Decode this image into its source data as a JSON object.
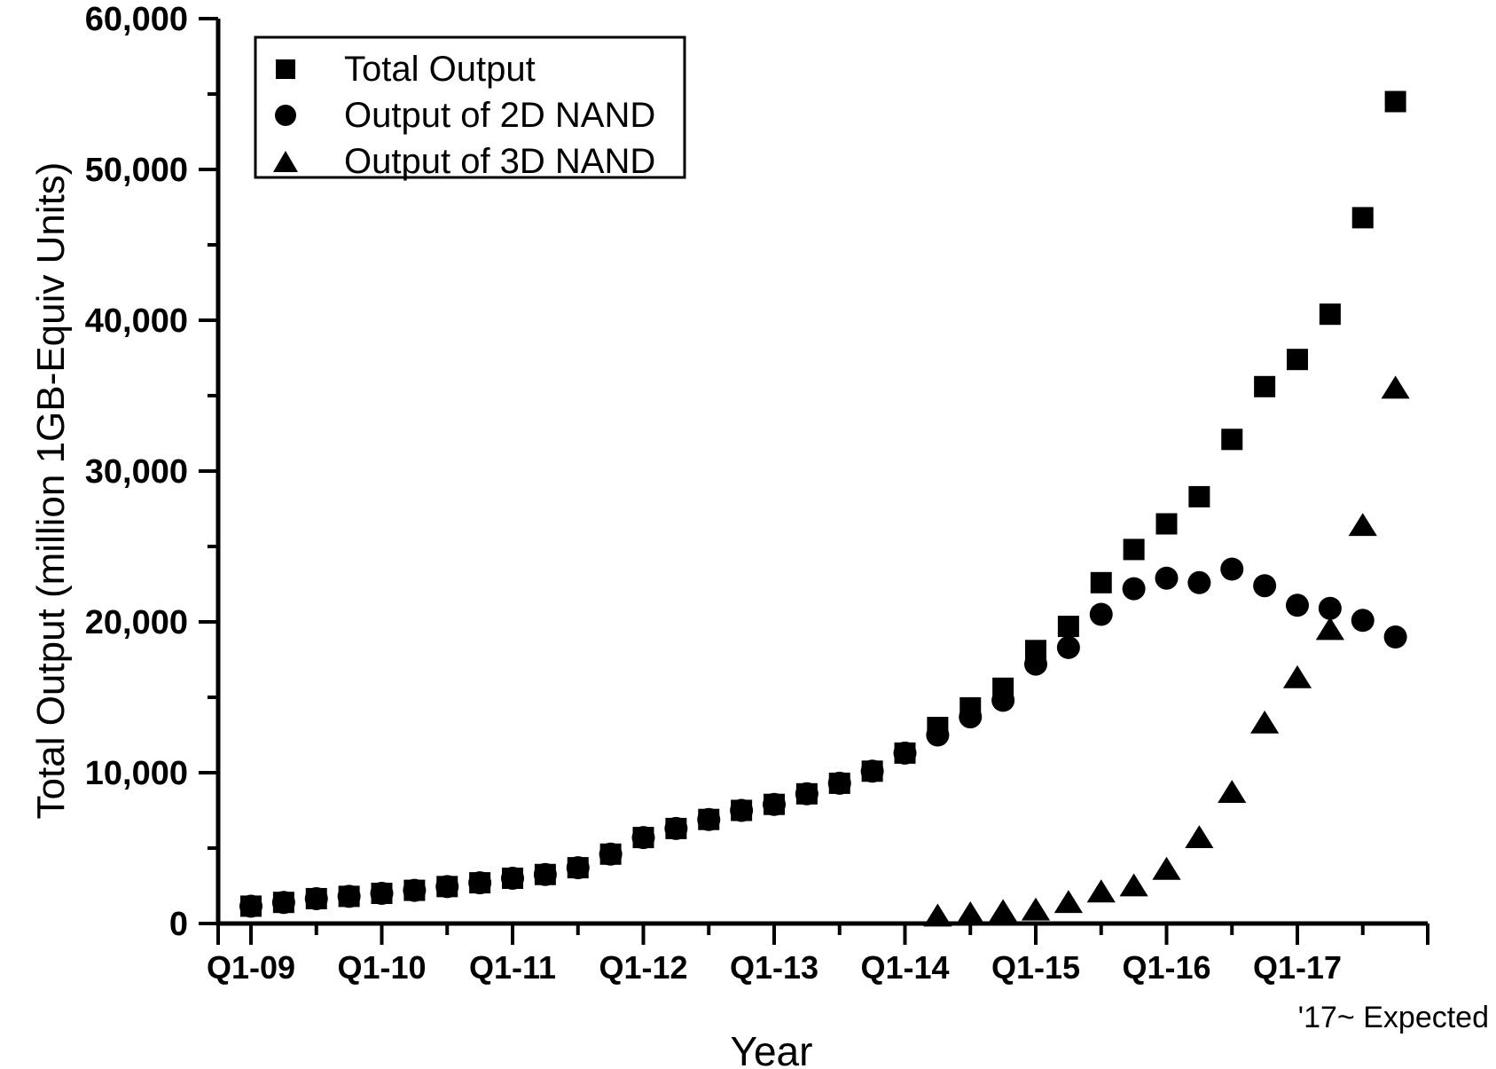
{
  "figure": {
    "background": "#ffffff",
    "foreground": "#000000",
    "annotation": "'17~ Expected"
  },
  "chart_data": {
    "type": "scatter",
    "title": "",
    "xlabel": "Year",
    "ylabel": "Total Output (million 1GB-Equiv Units)",
    "color": "#000000",
    "grid": false,
    "legend_position": "top-left",
    "ylim": [
      0,
      60000
    ],
    "y_major_ticks": [
      0,
      10000,
      20000,
      30000,
      40000,
      50000,
      60000
    ],
    "y_tick_labels": [
      "0",
      "10,000",
      "20,000",
      "30,000",
      "40,000",
      "50,000",
      "60,000"
    ],
    "y_minor_step": 5000,
    "x_major_tick_labels": [
      "Q1-09",
      "Q1-10",
      "Q1-11",
      "Q1-12",
      "Q1-13",
      "Q1-14",
      "Q1-15",
      "Q1-16",
      "Q1-17"
    ],
    "x_minor_ticks_at": "Q3 of each year",
    "categories": [
      "Q1-09",
      "Q2-09",
      "Q3-09",
      "Q4-09",
      "Q1-10",
      "Q2-10",
      "Q3-10",
      "Q4-10",
      "Q1-11",
      "Q2-11",
      "Q3-11",
      "Q4-11",
      "Q1-12",
      "Q2-12",
      "Q3-12",
      "Q4-12",
      "Q1-13",
      "Q2-13",
      "Q3-13",
      "Q4-13",
      "Q1-14",
      "Q2-14",
      "Q3-14",
      "Q4-14",
      "Q1-15",
      "Q2-15",
      "Q3-15",
      "Q4-15",
      "Q1-16",
      "Q2-16",
      "Q3-16",
      "Q4-16",
      "Q1-17",
      "Q2-17",
      "Q3-17",
      "Q4-17"
    ],
    "series": [
      {
        "name": "Total Output",
        "marker": "square",
        "values": [
          1150,
          1400,
          1650,
          1800,
          2000,
          2200,
          2450,
          2700,
          3000,
          3250,
          3700,
          4600,
          5700,
          6300,
          6900,
          7500,
          7900,
          8600,
          9300,
          10100,
          11300,
          13000,
          14300,
          15600,
          18100,
          19700,
          22600,
          24800,
          26500,
          28300,
          32100,
          35600,
          37400,
          40400,
          46800,
          54500
        ]
      },
      {
        "name": "Output of 2D NAND",
        "marker": "circle",
        "values": [
          1150,
          1400,
          1650,
          1800,
          2000,
          2200,
          2450,
          2700,
          3000,
          3250,
          3700,
          4600,
          5700,
          6300,
          6900,
          7500,
          7900,
          8600,
          9300,
          10100,
          11300,
          12500,
          13700,
          14800,
          17200,
          18300,
          20500,
          22200,
          22900,
          22600,
          23500,
          22400,
          21100,
          20900,
          20100,
          19000
        ]
      },
      {
        "name": "Output of 3D NAND",
        "marker": "triangle",
        "values": [
          null,
          null,
          null,
          null,
          null,
          null,
          null,
          null,
          null,
          null,
          null,
          null,
          null,
          null,
          null,
          null,
          null,
          null,
          null,
          null,
          null,
          500,
          650,
          800,
          900,
          1400,
          2100,
          2500,
          3600,
          5700,
          8700,
          13300,
          16300,
          19500,
          26400,
          35500
        ]
      }
    ]
  }
}
